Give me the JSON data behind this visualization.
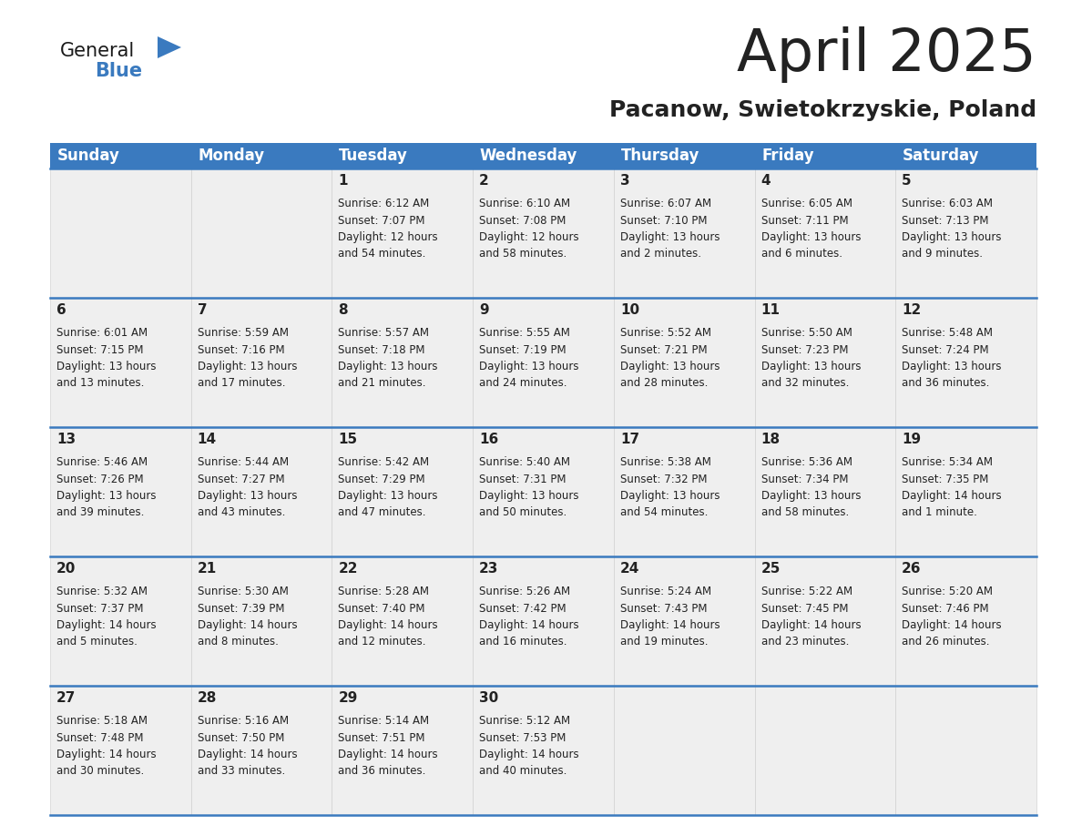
{
  "title": "April 2025",
  "subtitle": "Pacanow, Swietokrzyskie, Poland",
  "header_color": "#3a7abf",
  "header_text_color": "#ffffff",
  "day_names": [
    "Sunday",
    "Monday",
    "Tuesday",
    "Wednesday",
    "Thursday",
    "Friday",
    "Saturday"
  ],
  "weeks": [
    [
      {
        "day": "",
        "sunrise": "",
        "sunset": "",
        "daylight": ""
      },
      {
        "day": "",
        "sunrise": "",
        "sunset": "",
        "daylight": ""
      },
      {
        "day": "1",
        "sunrise": "6:12 AM",
        "sunset": "7:07 PM",
        "daylight": "12 hours\nand 54 minutes."
      },
      {
        "day": "2",
        "sunrise": "6:10 AM",
        "sunset": "7:08 PM",
        "daylight": "12 hours\nand 58 minutes."
      },
      {
        "day": "3",
        "sunrise": "6:07 AM",
        "sunset": "7:10 PM",
        "daylight": "13 hours\nand 2 minutes."
      },
      {
        "day": "4",
        "sunrise": "6:05 AM",
        "sunset": "7:11 PM",
        "daylight": "13 hours\nand 6 minutes."
      },
      {
        "day": "5",
        "sunrise": "6:03 AM",
        "sunset": "7:13 PM",
        "daylight": "13 hours\nand 9 minutes."
      }
    ],
    [
      {
        "day": "6",
        "sunrise": "6:01 AM",
        "sunset": "7:15 PM",
        "daylight": "13 hours\nand 13 minutes."
      },
      {
        "day": "7",
        "sunrise": "5:59 AM",
        "sunset": "7:16 PM",
        "daylight": "13 hours\nand 17 minutes."
      },
      {
        "day": "8",
        "sunrise": "5:57 AM",
        "sunset": "7:18 PM",
        "daylight": "13 hours\nand 21 minutes."
      },
      {
        "day": "9",
        "sunrise": "5:55 AM",
        "sunset": "7:19 PM",
        "daylight": "13 hours\nand 24 minutes."
      },
      {
        "day": "10",
        "sunrise": "5:52 AM",
        "sunset": "7:21 PM",
        "daylight": "13 hours\nand 28 minutes."
      },
      {
        "day": "11",
        "sunrise": "5:50 AM",
        "sunset": "7:23 PM",
        "daylight": "13 hours\nand 32 minutes."
      },
      {
        "day": "12",
        "sunrise": "5:48 AM",
        "sunset": "7:24 PM",
        "daylight": "13 hours\nand 36 minutes."
      }
    ],
    [
      {
        "day": "13",
        "sunrise": "5:46 AM",
        "sunset": "7:26 PM",
        "daylight": "13 hours\nand 39 minutes."
      },
      {
        "day": "14",
        "sunrise": "5:44 AM",
        "sunset": "7:27 PM",
        "daylight": "13 hours\nand 43 minutes."
      },
      {
        "day": "15",
        "sunrise": "5:42 AM",
        "sunset": "7:29 PM",
        "daylight": "13 hours\nand 47 minutes."
      },
      {
        "day": "16",
        "sunrise": "5:40 AM",
        "sunset": "7:31 PM",
        "daylight": "13 hours\nand 50 minutes."
      },
      {
        "day": "17",
        "sunrise": "5:38 AM",
        "sunset": "7:32 PM",
        "daylight": "13 hours\nand 54 minutes."
      },
      {
        "day": "18",
        "sunrise": "5:36 AM",
        "sunset": "7:34 PM",
        "daylight": "13 hours\nand 58 minutes."
      },
      {
        "day": "19",
        "sunrise": "5:34 AM",
        "sunset": "7:35 PM",
        "daylight": "14 hours\nand 1 minute."
      }
    ],
    [
      {
        "day": "20",
        "sunrise": "5:32 AM",
        "sunset": "7:37 PM",
        "daylight": "14 hours\nand 5 minutes."
      },
      {
        "day": "21",
        "sunrise": "5:30 AM",
        "sunset": "7:39 PM",
        "daylight": "14 hours\nand 8 minutes."
      },
      {
        "day": "22",
        "sunrise": "5:28 AM",
        "sunset": "7:40 PM",
        "daylight": "14 hours\nand 12 minutes."
      },
      {
        "day": "23",
        "sunrise": "5:26 AM",
        "sunset": "7:42 PM",
        "daylight": "14 hours\nand 16 minutes."
      },
      {
        "day": "24",
        "sunrise": "5:24 AM",
        "sunset": "7:43 PM",
        "daylight": "14 hours\nand 19 minutes."
      },
      {
        "day": "25",
        "sunrise": "5:22 AM",
        "sunset": "7:45 PM",
        "daylight": "14 hours\nand 23 minutes."
      },
      {
        "day": "26",
        "sunrise": "5:20 AM",
        "sunset": "7:46 PM",
        "daylight": "14 hours\nand 26 minutes."
      }
    ],
    [
      {
        "day": "27",
        "sunrise": "5:18 AM",
        "sunset": "7:48 PM",
        "daylight": "14 hours\nand 30 minutes."
      },
      {
        "day": "28",
        "sunrise": "5:16 AM",
        "sunset": "7:50 PM",
        "daylight": "14 hours\nand 33 minutes."
      },
      {
        "day": "29",
        "sunrise": "5:14 AM",
        "sunset": "7:51 PM",
        "daylight": "14 hours\nand 36 minutes."
      },
      {
        "day": "30",
        "sunrise": "5:12 AM",
        "sunset": "7:53 PM",
        "daylight": "14 hours\nand 40 minutes."
      },
      {
        "day": "",
        "sunrise": "",
        "sunset": "",
        "daylight": ""
      },
      {
        "day": "",
        "sunrise": "",
        "sunset": "",
        "daylight": ""
      },
      {
        "day": "",
        "sunrise": "",
        "sunset": "",
        "daylight": ""
      }
    ]
  ],
  "cell_bg_color": "#efefef",
  "border_color": "#3a7abf",
  "text_color": "#222222",
  "logo_general_color": "#1a1a1a",
  "logo_blue_color": "#3a7abf",
  "fig_width": 11.88,
  "fig_height": 9.18,
  "dpi": 100
}
